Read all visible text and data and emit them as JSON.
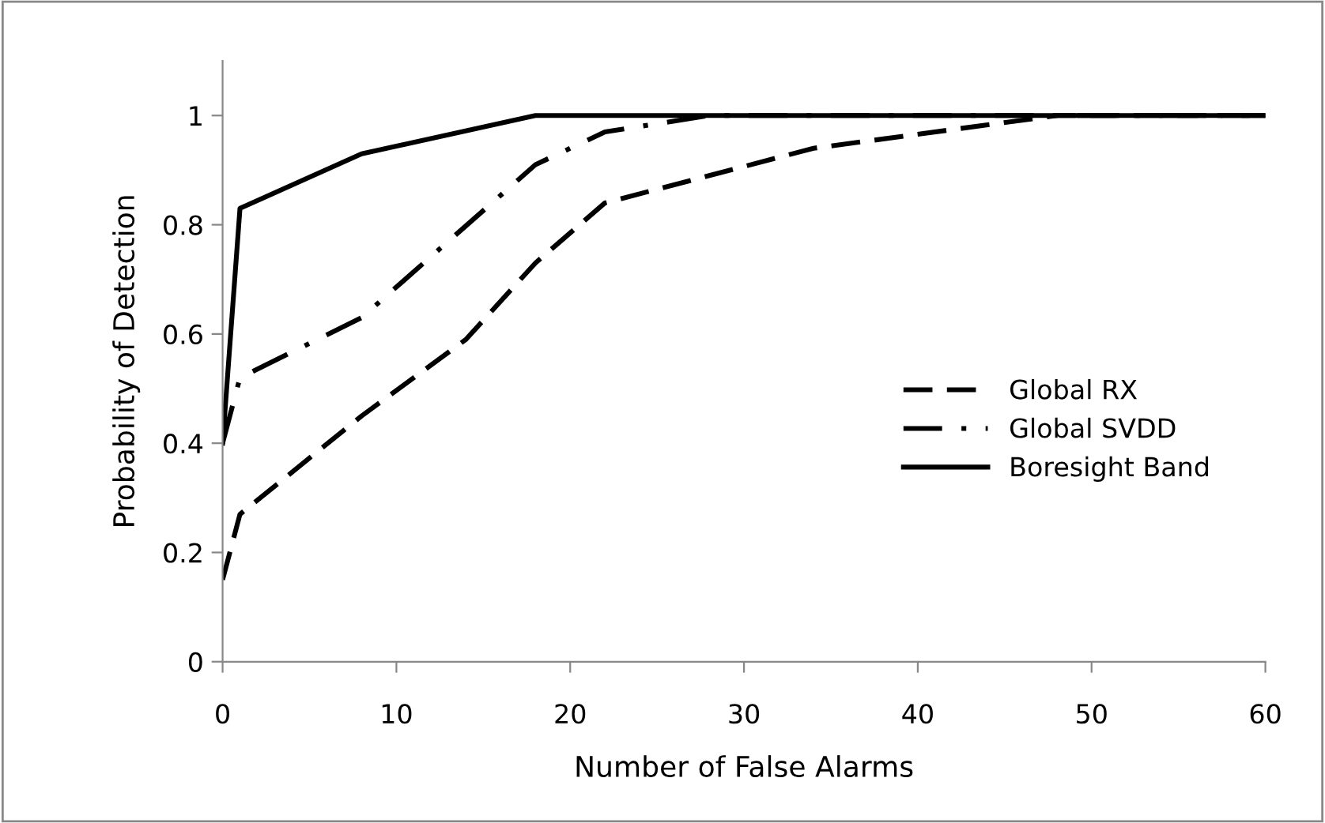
{
  "chart_data": {
    "type": "line",
    "xlabel": "Number of False Alarms",
    "ylabel": "Probability of Detection",
    "xlim": [
      0,
      60
    ],
    "ylim": [
      0,
      1.1
    ],
    "xticks": [
      0,
      10,
      20,
      30,
      40,
      50,
      60
    ],
    "yticks": [
      0,
      0.2,
      0.4,
      0.6,
      0.8,
      1
    ],
    "grid": false,
    "legend": "bottom right",
    "marker": "none",
    "series": [
      {
        "name": "Global RX",
        "color": "#000000",
        "line_style": "dashed",
        "x": [
          0,
          1,
          8,
          14,
          18,
          22,
          34,
          48,
          60
        ],
        "values": [
          0.15,
          0.27,
          0.45,
          0.59,
          0.73,
          0.84,
          0.94,
          1.0,
          1.0
        ]
      },
      {
        "name": "Global SVDD",
        "color": "#000000",
        "line_style": "dashdot",
        "x": [
          0,
          1,
          8,
          18,
          22,
          28,
          60
        ],
        "values": [
          0.4,
          0.52,
          0.63,
          0.91,
          0.97,
          1.0,
          1.0
        ]
      },
      {
        "name": "Boresight Band",
        "color": "#000000",
        "line_style": "solid",
        "x": [
          0,
          1,
          8,
          18,
          60
        ],
        "values": [
          0.4,
          0.83,
          0.93,
          1.0,
          1.0
        ]
      }
    ]
  }
}
